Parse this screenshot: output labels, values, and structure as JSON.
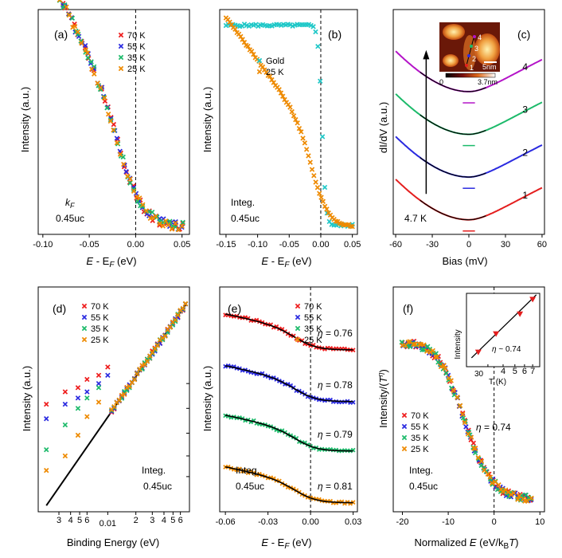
{
  "palette": {
    "70 K": "#ee1c1c",
    "55 K": "#2a2ae0",
    "35 K": "#1cba6a",
    "25 K": "#ee8a00",
    "Gold": "#20c8c8",
    "fit": "#000000",
    "tip1": "#e41e1e",
    "tip2": "#2a2ae0",
    "tip3": "#1cba6a",
    "tip4": "#b414c8"
  },
  "chart_data": [
    {
      "id": "a",
      "panel_label": "(a)",
      "type": "scatter",
      "xlabel_main": "E",
      "xlabel_rest": " - E",
      "xlabel_sub": "F",
      "xlabel_tail": " (eV)",
      "ylabel": "Intensity (a.u.)",
      "xlim": [
        -0.105,
        0.058
      ],
      "ylim": [
        0,
        1
      ],
      "xticks": [
        -0.1,
        -0.05,
        0.0,
        0.05
      ],
      "xticklabels": [
        "-0.10",
        "-0.05",
        "0.00",
        "0.05"
      ],
      "dashed_x": 0.0,
      "annotation_main": "k",
      "annotation_sub": "F",
      "annotation2": "0.45uc",
      "legend": [
        "70 K",
        "55 K",
        "35 K",
        "25 K"
      ],
      "curve": {
        "kind": "step",
        "edge": -0.008,
        "width": 0.012,
        "low": 0.035,
        "slope_top": 0.82,
        "slope_bot": 0.48,
        "x0": -0.1,
        "x1": 0.05
      }
    },
    {
      "id": "b",
      "panel_label": "(b)",
      "type": "scatter",
      "xlabel_main": "E",
      "xlabel_rest": " - E",
      "xlabel_sub": "F",
      "xlabel_tail": " (eV)",
      "ylabel": "Intensity (a.u.)",
      "xlim": [
        -0.16,
        0.058
      ],
      "ylim": [
        0,
        1
      ],
      "xticks": [
        -0.15,
        -0.1,
        -0.05,
        0.0,
        0.05
      ],
      "xticklabels": [
        "-0.15",
        "-0.10",
        "-0.05",
        "0.00",
        "0.05"
      ],
      "dashed_x": 0.0,
      "annotation1": "Integ.",
      "annotation2": "0.45uc",
      "legend": [
        "Gold",
        "25 K"
      ],
      "series": [
        {
          "name": "Gold",
          "kind": "fermi",
          "edge": 0.002,
          "width": 0.003,
          "low": 0.04,
          "high": 0.93,
          "x0": -0.15,
          "x1": 0.05
        },
        {
          "name": "25 K",
          "kind": "decay",
          "edge": -0.008,
          "width": 0.012,
          "low": 0.035,
          "x0": -0.15,
          "x1": 0.05
        }
      ]
    },
    {
      "id": "c",
      "panel_label": "(c)",
      "type": "line",
      "xlabel": "Bias (mV)",
      "ylabel": "dI/dV (a.u.)",
      "xlim": [
        -62,
        62
      ],
      "ylim": [
        0,
        1
      ],
      "xticks": [
        -60,
        -30,
        0,
        30,
        60
      ],
      "xticklabels": [
        "-60",
        "-30",
        "0",
        "30",
        "60"
      ],
      "temperature": "4.7 K",
      "curve_labels": [
        "1",
        "2",
        "3",
        "4"
      ],
      "offsets": [
        0.05,
        0.24,
        0.43,
        0.62
      ],
      "inset": {
        "scale_label": "5nm",
        "colorbar_min": "0",
        "colorbar_max": "3.7nm",
        "point_labels": [
          "1",
          "2",
          "3",
          "4"
        ]
      }
    },
    {
      "id": "d",
      "panel_label": "(d)",
      "type": "scatter",
      "xscale": "log",
      "yscale": "log",
      "xlabel": "Binding Energy (eV)",
      "ylabel": "Intensity (a.u.)",
      "xlim": [
        0.0018,
        0.075
      ],
      "xtick_labels_shown": [
        {
          "value": 0.003,
          "label": "3"
        },
        {
          "value": 0.004,
          "label": "4"
        },
        {
          "value": 0.005,
          "label": "5"
        },
        {
          "value": 0.006,
          "label": "6"
        },
        {
          "value": 0.01,
          "label": "0.01"
        },
        {
          "value": 0.02,
          "label": "2"
        },
        {
          "value": 0.03,
          "label": "3"
        },
        {
          "value": 0.04,
          "label": "4"
        },
        {
          "value": 0.05,
          "label": "5"
        },
        {
          "value": 0.06,
          "label": "6"
        }
      ],
      "annotation1": "Integ.",
      "annotation2": "0.45uc",
      "legend": [
        "70 K",
        "55 K",
        "35 K",
        "25 K"
      ],
      "fit_line": {
        "x": [
          0.0022,
          0.068
        ],
        "y": [
          0.03,
          1.0
        ]
      },
      "low_energy_points": [
        {
          "series": "70 K",
          "points": [
            [
              0.0022,
              0.52
            ],
            [
              0.0035,
              0.58
            ],
            [
              0.0048,
              0.6
            ],
            [
              0.006,
              0.64
            ],
            [
              0.008,
              0.66
            ],
            [
              0.01,
              0.7
            ]
          ]
        },
        {
          "series": "55 K",
          "points": [
            [
              0.0022,
              0.45
            ],
            [
              0.0035,
              0.52
            ],
            [
              0.0048,
              0.55
            ],
            [
              0.006,
              0.58
            ],
            [
              0.008,
              0.62
            ],
            [
              0.01,
              0.66
            ]
          ]
        },
        {
          "series": "35 K",
          "points": [
            [
              0.0022,
              0.3
            ],
            [
              0.0035,
              0.42
            ],
            [
              0.0048,
              0.5
            ],
            [
              0.006,
              0.55
            ],
            [
              0.008,
              0.6
            ]
          ]
        },
        {
          "series": "25 K",
          "points": [
            [
              0.0022,
              0.2
            ],
            [
              0.0035,
              0.27
            ],
            [
              0.0048,
              0.37
            ],
            [
              0.006,
              0.46
            ],
            [
              0.008,
              0.53
            ]
          ]
        }
      ]
    },
    {
      "id": "e",
      "panel_label": "(e)",
      "type": "scatter",
      "xlabel_main": "E",
      "xlabel_rest": " - E",
      "xlabel_sub": "F",
      "xlabel_tail": " (eV)",
      "ylabel": "Intensity (a.u.)",
      "xlim": [
        -0.064,
        0.033
      ],
      "ylim": [
        0,
        1
      ],
      "xticks": [
        -0.06,
        -0.03,
        0.0,
        0.03
      ],
      "xticklabels": [
        "-0.06",
        "-0.03",
        "0.00",
        "0.03"
      ],
      "dashed_x": 0.0,
      "annotation1": "Integ.",
      "annotation2": "0.45uc",
      "legend": [
        "70 K",
        "55 K",
        "35 K",
        "25 K"
      ],
      "series": [
        {
          "name": "70 K",
          "eta": "= 0.76",
          "offset": 0.72
        },
        {
          "name": "55 K",
          "eta": "= 0.78",
          "offset": 0.49
        },
        {
          "name": "35 K",
          "eta": "= 0.79",
          "offset": 0.27
        },
        {
          "name": "25 K",
          "eta": "= 0.81",
          "offset": 0.04
        }
      ]
    },
    {
      "id": "f",
      "panel_label": "(f)",
      "type": "scatter",
      "xlabel_main": "Normalized ",
      "xlabel_e": "E",
      "xlabel_rest": " (eV/k",
      "xlabel_sub": "B",
      "xlabel_t": "T",
      "xlabel_tail": ")",
      "ylabel_main": "Intensity/(",
      "ylabel_t": "T",
      "ylabel_sup": "η",
      "ylabel_tail": ")",
      "xlim": [
        -22,
        11
      ],
      "ylim": [
        0,
        1
      ],
      "xticks": [
        -20,
        -10,
        0,
        10
      ],
      "xticklabels": [
        "-20",
        "-10",
        "0",
        "10"
      ],
      "dashed_x": 0,
      "annotation1": "Integ.",
      "annotation2": "0.45uc",
      "eta_text": "= 0.74",
      "legend": [
        "70 K",
        "55 K",
        "35 K",
        "25 K"
      ],
      "inset": {
        "xscale": "log",
        "xlabel": "T (K)",
        "ylabel": "Intensity",
        "xtick_label": "30",
        "minor_labels": [
          "4",
          "5",
          "6",
          "7"
        ],
        "eta_text": "~ 0.74",
        "points": [
          {
            "series": "25 K",
            "x": 25,
            "y": 0.2
          },
          {
            "series": "35 K",
            "x": 35,
            "y": 0.45
          },
          {
            "series": "55 K",
            "x": 55,
            "y": 0.72
          },
          {
            "series": "70 K",
            "x": 70,
            "y": 0.92
          }
        ]
      }
    }
  ]
}
